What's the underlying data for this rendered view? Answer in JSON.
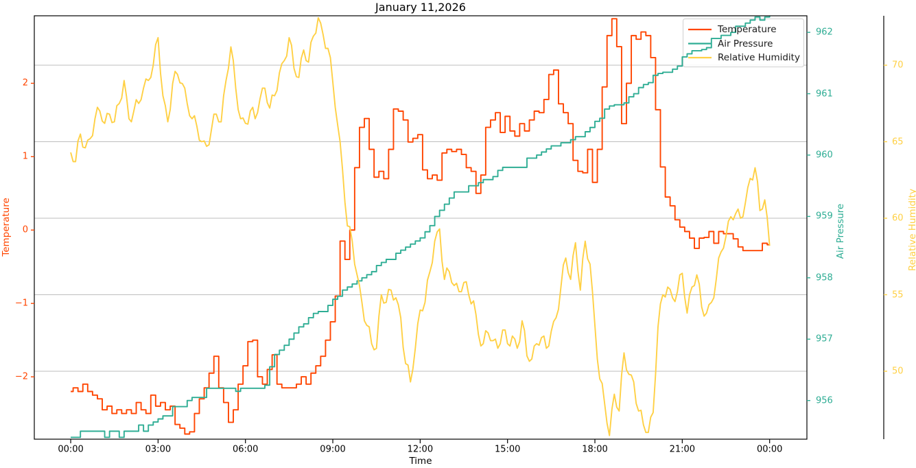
{
  "title": "January 11,2026",
  "axes": {
    "x": {
      "label": "Time",
      "tick_labels": [
        "00:00",
        "03:00",
        "06:00",
        "09:00",
        "12:00",
        "15:00",
        "18:00",
        "21:00",
        "00:00"
      ],
      "tick_hours": [
        0,
        3,
        6,
        9,
        12,
        15,
        18,
        21,
        24
      ],
      "lim_hours": [
        -1.25,
        25.28
      ]
    },
    "temperature": {
      "label": "Temperature",
      "color": "#FF4500",
      "tick_values": [
        2,
        1,
        0,
        -1,
        -2
      ],
      "tick_labels": [
        "2",
        "1",
        "0",
        "−1",
        "−2"
      ],
      "lim": [
        -2.85,
        2.92
      ]
    },
    "pressure": {
      "label": "Air Pressure",
      "color": "#2EAD94",
      "tick_values": [
        962,
        961,
        960,
        959,
        958,
        957,
        956
      ],
      "tick_labels": [
        "962",
        "961",
        "960",
        "959",
        "958",
        "957",
        "956"
      ],
      "lim": [
        955.37,
        962.27
      ]
    },
    "humidity": {
      "label": "Relative Humidity",
      "color": "#FFD044",
      "tick_values": [
        70,
        65,
        60,
        55,
        50
      ],
      "tick_labels": [
        "70",
        "65",
        "60",
        "55",
        "50"
      ],
      "lim": [
        45.56,
        73.23
      ],
      "grid": true,
      "grid_color": "#bdbdbd"
    }
  },
  "legend": {
    "position": "upper right",
    "entries": [
      {
        "label": "Temperature",
        "color": "#FF4500"
      },
      {
        "label": "Air Pressure",
        "color": "#2EAD94"
      },
      {
        "label": "Relative Humidity",
        "color": "#FFD044"
      }
    ]
  },
  "chart_data": {
    "type": "line",
    "title": "January 11,2026",
    "xlabel": "Time",
    "x_unit": "minutes since 00:00",
    "x_start_minute": 0,
    "x_step_minutes": 10,
    "grid": "horizontal gridlines at humidity ticks 70,65,60,55,50",
    "legend_position": "upper right",
    "series": [
      {
        "name": "Temperature",
        "axis": "temperature",
        "color": "#FF4500",
        "style": "step-mid",
        "values": [
          -2.2,
          -2.15,
          -2.2,
          -2.1,
          -2.2,
          -2.25,
          -2.3,
          -2.45,
          -2.4,
          -2.5,
          -2.45,
          -2.5,
          -2.45,
          -2.5,
          -2.35,
          -2.45,
          -2.5,
          -2.25,
          -2.4,
          -2.35,
          -2.45,
          -2.4,
          -2.65,
          -2.7,
          -2.78,
          -2.75,
          -2.5,
          -2.3,
          -2.15,
          -1.95,
          -1.72,
          -2.15,
          -2.35,
          -2.62,
          -2.45,
          -2.1,
          -1.85,
          -1.52,
          -1.5,
          -2.0,
          -2.1,
          -1.9,
          -1.7,
          -2.1,
          -2.15,
          -2.15,
          -2.15,
          -2.1,
          -2.0,
          -2.1,
          -1.95,
          -1.85,
          -1.72,
          -1.5,
          -1.25,
          -0.9,
          -0.15,
          -0.4,
          0.0,
          0.85,
          1.4,
          1.52,
          1.1,
          0.72,
          0.8,
          0.7,
          1.1,
          1.65,
          1.62,
          1.5,
          1.2,
          1.25,
          1.3,
          0.82,
          0.7,
          0.75,
          0.68,
          1.05,
          1.1,
          1.07,
          1.1,
          1.03,
          0.85,
          0.8,
          0.5,
          0.75,
          1.4,
          1.5,
          1.6,
          1.33,
          1.55,
          1.35,
          1.28,
          1.45,
          1.35,
          1.5,
          1.62,
          1.6,
          1.78,
          2.12,
          2.18,
          1.72,
          1.6,
          1.45,
          0.95,
          0.8,
          0.78,
          1.1,
          0.65,
          1.1,
          1.95,
          2.65,
          2.88,
          2.5,
          1.45,
          2.0,
          2.65,
          2.6,
          2.7,
          2.65,
          2.35,
          1.64,
          0.86,
          0.45,
          0.33,
          0.14,
          0.04,
          -0.02,
          -0.11,
          -0.25,
          -0.11,
          -0.1,
          -0.02,
          -0.18,
          -0.02,
          -0.05,
          -0.05,
          -0.12,
          -0.23,
          -0.28,
          -0.28,
          -0.28,
          -0.28,
          -0.18,
          -0.2
        ]
      },
      {
        "name": "Air Pressure",
        "axis": "pressure",
        "color": "#2EAD94",
        "style": "step-post",
        "values": [
          955.4,
          955.4,
          955.5,
          955.5,
          955.5,
          955.5,
          955.5,
          955.4,
          955.5,
          955.5,
          955.4,
          955.5,
          955.5,
          955.5,
          955.6,
          955.5,
          955.6,
          955.65,
          955.7,
          955.75,
          955.75,
          955.9,
          955.9,
          955.9,
          956.0,
          956.05,
          956.05,
          956.05,
          956.2,
          956.2,
          956.2,
          956.2,
          956.2,
          956.2,
          956.15,
          956.2,
          956.2,
          956.2,
          956.2,
          956.2,
          956.25,
          956.55,
          956.75,
          956.82,
          956.9,
          957.0,
          957.1,
          957.2,
          957.25,
          957.35,
          957.42,
          957.45,
          957.45,
          957.55,
          957.65,
          957.7,
          957.8,
          957.85,
          957.9,
          957.95,
          958.0,
          958.05,
          958.1,
          958.2,
          958.25,
          958.3,
          958.3,
          958.4,
          958.45,
          958.5,
          958.55,
          958.6,
          958.65,
          958.75,
          958.85,
          959.0,
          959.1,
          959.2,
          959.3,
          959.4,
          959.4,
          959.4,
          959.5,
          959.5,
          959.55,
          959.6,
          959.6,
          959.65,
          959.75,
          959.8,
          959.8,
          959.8,
          959.8,
          959.8,
          959.95,
          959.95,
          960.0,
          960.05,
          960.1,
          960.15,
          960.15,
          960.2,
          960.2,
          960.25,
          960.3,
          960.3,
          960.38,
          960.45,
          960.55,
          960.6,
          960.75,
          960.8,
          960.82,
          960.82,
          960.85,
          960.95,
          961.0,
          961.1,
          961.15,
          961.18,
          961.3,
          961.33,
          961.35,
          961.35,
          961.4,
          961.45,
          961.6,
          961.65,
          961.7,
          961.7,
          961.72,
          961.75,
          961.9,
          961.9,
          961.95,
          961.95,
          962.0,
          962.1,
          962.1,
          962.15,
          962.2,
          962.25,
          962.2,
          962.25,
          962.3
        ]
      },
      {
        "name": "Relative Humidity",
        "axis": "humidity",
        "color": "#FFD044",
        "style": "jagged-line",
        "values": [
          64.3,
          63.7,
          65.5,
          64.6,
          65.2,
          66.5,
          67.0,
          66.2,
          66.8,
          66.3,
          67.5,
          69.0,
          66.5,
          67.0,
          67.5,
          68.5,
          69.0,
          70.0,
          71.8,
          68.0,
          66.3,
          68.8,
          69.4,
          68.8,
          67.5,
          66.5,
          66.0,
          65.0,
          64.7,
          65.8,
          66.8,
          66.3,
          69.0,
          71.2,
          68.5,
          66.5,
          66.2,
          67.0,
          66.5,
          67.8,
          68.5,
          67.2,
          68.0,
          69.5,
          70.3,
          71.8,
          69.8,
          69.2,
          71.0,
          70.2,
          71.9,
          73.1,
          72.0,
          71.1,
          68.9,
          66.1,
          63.2,
          59.5,
          58.5,
          56.3,
          54.5,
          53.0,
          51.8,
          51.5,
          55.0,
          54.5,
          55.3,
          54.8,
          53.5,
          50.5,
          49.3,
          51.5,
          54.0,
          54.5,
          56.5,
          58.5,
          59.3,
          56.0,
          56.5,
          55.6,
          55.2,
          55.8,
          55.0,
          54.6,
          52.4,
          51.8,
          52.5,
          52.0,
          51.5,
          52.7,
          51.8,
          52.3,
          51.5,
          53.3,
          51.0,
          50.8,
          51.8,
          52.2,
          51.5,
          52.6,
          53.5,
          55.5,
          57.4,
          56.0,
          58.4,
          55.3,
          58.5,
          57.0,
          53.0,
          49.5,
          47.9,
          45.8,
          48.5,
          47.4,
          51.2,
          49.8,
          49.3,
          47.4,
          46.5,
          46.0,
          47.3,
          52.9,
          55.0,
          55.5,
          54.8,
          55.2,
          56.4,
          53.8,
          55.5,
          56.3,
          54.2,
          53.8,
          54.5,
          56.0,
          57.8,
          58.8,
          60.1,
          60.3,
          60.0,
          61.0,
          62.6,
          63.3,
          60.5,
          61.2,
          58.2
        ]
      }
    ]
  }
}
